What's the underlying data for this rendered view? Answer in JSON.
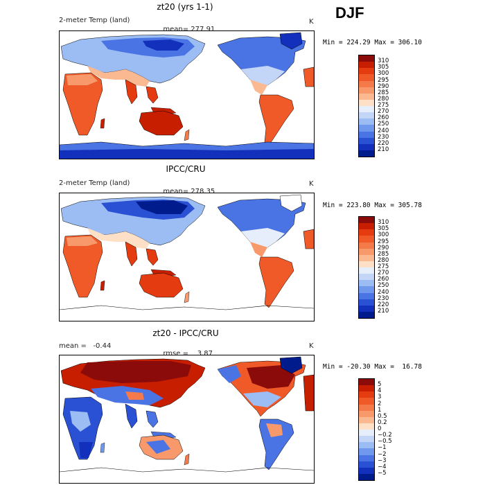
{
  "season": "DJF",
  "panels": [
    {
      "title": "zt20 (yrs 1-1)",
      "left_label": "2-meter Temp (land)",
      "stat_label": "mean=",
      "stat_value": "277.91",
      "units": "K",
      "minmax": "Min = 224.29 Max = 306.10",
      "cmap": "abs",
      "labels": [
        "310",
        "305",
        "300",
        "295",
        "290",
        "285",
        "280",
        "275",
        "270",
        "260",
        "250",
        "240",
        "230",
        "220",
        "210"
      ],
      "colors": [
        "#8b0a0a",
        "#c81e00",
        "#e43c10",
        "#f05a28",
        "#f47a4a",
        "#f8996c",
        "#fbb992",
        "#fde0c6",
        "#e6eefc",
        "#c4d6f8",
        "#9cbcf4",
        "#7098ec",
        "#4a74e4",
        "#2a50d4",
        "#1230bc",
        "#001c8c"
      ]
    },
    {
      "title": "IPCC/CRU",
      "left_label": "2-meter Temp (land)",
      "stat_label": "mean=",
      "stat_value": "278.35",
      "units": "K",
      "minmax": "Min = 223.80 Max = 305.78",
      "cmap": "abs",
      "labels": [
        "310",
        "305",
        "300",
        "295",
        "290",
        "285",
        "280",
        "275",
        "270",
        "260",
        "250",
        "240",
        "230",
        "220",
        "210"
      ],
      "colors": [
        "#8b0a0a",
        "#c81e00",
        "#e43c10",
        "#f05a28",
        "#f47a4a",
        "#f8996c",
        "#fbb992",
        "#fde0c6",
        "#e6eefc",
        "#c4d6f8",
        "#9cbcf4",
        "#7098ec",
        "#4a74e4",
        "#2a50d4",
        "#1230bc",
        "#001c8c"
      ]
    },
    {
      "title": "zt20 - IPCC/CRU",
      "left_label": "mean =   -0.44",
      "stat_label": "rmse =",
      "stat_value": "3.87",
      "units": "K",
      "minmax": "Min = -20.30 Max =  16.78",
      "cmap": "diff",
      "labels": [
        "5",
        "4",
        "3",
        "2",
        "1",
        "0.5",
        "0.2",
        "0",
        "−0.2",
        "−0.5",
        "−1",
        "−2",
        "−3",
        "−4",
        "−5"
      ],
      "colors": [
        "#8b0a0a",
        "#c81e00",
        "#e43c10",
        "#f05a28",
        "#f47a4a",
        "#f8996c",
        "#fbb992",
        "#fde0c6",
        "#e6eefc",
        "#c4d6f8",
        "#9cbcf4",
        "#7098ec",
        "#4a74e4",
        "#2a50d4",
        "#1230bc",
        "#001c8c"
      ]
    }
  ]
}
